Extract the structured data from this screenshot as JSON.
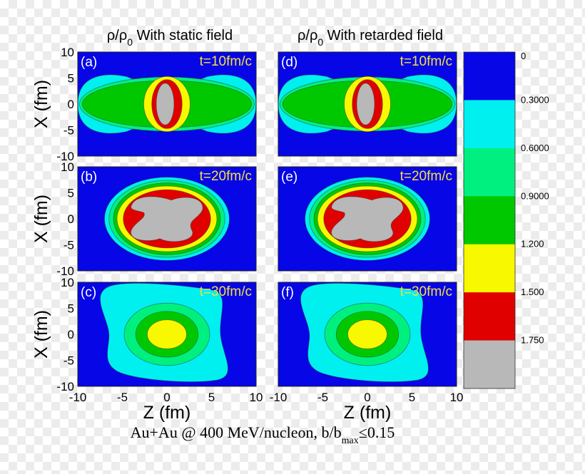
{
  "figure": {
    "caption_main": "Au+Au @ 400 MeV/nucleon, b/b",
    "caption_sub": "max",
    "caption_tail": "≤0.15"
  },
  "colors": {
    "background": "#0606e6",
    "levels": [
      "#0606e6",
      "#00f0f0",
      "#00f080",
      "#00c800",
      "#f8f800",
      "#e00000",
      "#b8b8b8"
    ],
    "label_text": "#ffffff",
    "time_text": "#f5e23a"
  },
  "chart_data": {
    "type": "heatmap",
    "description_fields_only": false,
    "columns": [
      {
        "title_rho": "ρ/ρ",
        "title_sub": "0",
        "title_text": " With static field"
      },
      {
        "title_rho": "ρ/ρ",
        "title_sub": "0",
        "title_text": " With retarded field"
      }
    ],
    "xlabel": "Z (fm)",
    "ylabel": "X (fm)",
    "xlim": [
      -10,
      10
    ],
    "ylim": [
      -10,
      10
    ],
    "x_ticks": [
      -10,
      -5,
      0,
      5,
      10
    ],
    "y_ticks": [
      10,
      5,
      0,
      -5,
      -10
    ],
    "colorbar": {
      "levels": [
        "0",
        "0.3000",
        "0.6000",
        "0.9000",
        "1.200",
        "1.500",
        "1.750"
      ]
    },
    "panels": [
      {
        "id": "a",
        "label": "(a)",
        "time": "t=10fm/c",
        "col": 0,
        "row": 0,
        "contours": [
          {
            "level": 1,
            "shape": "dumbbell",
            "half_width": 10,
            "end_half_height": 6.2,
            "waist_half_height": 3.6
          },
          {
            "level": 2,
            "shape": "ellipse",
            "cx": 0,
            "cy": 0,
            "rx": 9.8,
            "ry": 5.2
          },
          {
            "level": 3,
            "shape": "ellipse",
            "cx": 0,
            "cy": 0,
            "rx": 9.5,
            "ry": 4.5
          },
          {
            "level": 4,
            "shape": "ellipse",
            "cx": 0,
            "cy": 0,
            "rx": 2.6,
            "ry": 5.3
          },
          {
            "level": 5,
            "shape": "ellipse",
            "cx": 0,
            "cy": 0,
            "rx": 1.7,
            "ry": 4.7
          },
          {
            "level": 6,
            "shape": "ellipse",
            "cx": -0.2,
            "cy": 0,
            "rx": 1.0,
            "ry": 4.0
          }
        ]
      },
      {
        "id": "b",
        "label": "(b)",
        "time": "t=20fm/c",
        "col": 0,
        "row": 1,
        "contours": [
          {
            "level": 1,
            "shape": "ellipse",
            "cx": 0,
            "cy": 0,
            "rx": 7.0,
            "ry": 8.0
          },
          {
            "level": 2,
            "shape": "ellipse",
            "cx": 0,
            "cy": 0,
            "rx": 6.5,
            "ry": 7.4
          },
          {
            "level": 3,
            "shape": "ellipse",
            "cx": 0,
            "cy": 0,
            "rx": 6.0,
            "ry": 6.9
          },
          {
            "level": 4,
            "shape": "ellipse",
            "cx": 0,
            "cy": 0,
            "rx": 5.6,
            "ry": 6.3
          },
          {
            "level": 5,
            "shape": "ellipse",
            "cx": 0,
            "cy": 0,
            "rx": 4.9,
            "ry": 5.6
          },
          {
            "level": 6,
            "shape": "blob",
            "cx": 0,
            "cy": 0
          }
        ]
      },
      {
        "id": "c",
        "label": "(c)",
        "time": "t=30fm/c",
        "col": 0,
        "row": 2,
        "contours": [
          {
            "level": 1,
            "shape": "wave",
            "cx": 0,
            "cy": 0
          },
          {
            "level": 2,
            "shape": "ellipse",
            "cx": 0,
            "cy": 0,
            "rx": 4.8,
            "ry": 6.0
          },
          {
            "level": 3,
            "shape": "ellipse",
            "cx": 0,
            "cy": 0,
            "rx": 3.5,
            "ry": 4.4
          },
          {
            "level": 4,
            "shape": "ellipse",
            "cx": 0,
            "cy": 0,
            "rx": 2.2,
            "ry": 2.8
          }
        ]
      },
      {
        "id": "d",
        "label": "(d)",
        "time": "t=10fm/c",
        "col": 1,
        "row": 0,
        "contours": [
          {
            "level": 1,
            "shape": "dumbbell",
            "half_width": 10,
            "end_half_height": 6.2,
            "waist_half_height": 3.6
          },
          {
            "level": 2,
            "shape": "ellipse",
            "cx": 0,
            "cy": 0,
            "rx": 9.8,
            "ry": 5.2
          },
          {
            "level": 3,
            "shape": "ellipse",
            "cx": 0,
            "cy": 0,
            "rx": 9.5,
            "ry": 4.5
          },
          {
            "level": 4,
            "shape": "ellipse",
            "cx": 0,
            "cy": 0,
            "rx": 2.6,
            "ry": 5.3
          },
          {
            "level": 5,
            "shape": "ellipse",
            "cx": 0,
            "cy": 0,
            "rx": 1.7,
            "ry": 4.7
          },
          {
            "level": 6,
            "shape": "ellipse",
            "cx": -0.2,
            "cy": 0,
            "rx": 1.0,
            "ry": 4.0
          }
        ]
      },
      {
        "id": "e",
        "label": "(e)",
        "time": "t=20fm/c",
        "col": 1,
        "row": 1,
        "contours": [
          {
            "level": 1,
            "shape": "ellipse",
            "cx": 0,
            "cy": 0,
            "rx": 7.0,
            "ry": 8.0
          },
          {
            "level": 2,
            "shape": "ellipse",
            "cx": 0,
            "cy": 0,
            "rx": 6.5,
            "ry": 7.4
          },
          {
            "level": 3,
            "shape": "ellipse",
            "cx": 0,
            "cy": 0,
            "rx": 6.0,
            "ry": 6.9
          },
          {
            "level": 4,
            "shape": "ellipse",
            "cx": 0,
            "cy": 0,
            "rx": 5.6,
            "ry": 6.3
          },
          {
            "level": 5,
            "shape": "ellipse",
            "cx": 0,
            "cy": 0,
            "rx": 4.9,
            "ry": 5.6
          },
          {
            "level": 6,
            "shape": "blob",
            "cx": 0,
            "cy": 0
          }
        ]
      },
      {
        "id": "f",
        "label": "(f)",
        "time": "t=30fm/c",
        "col": 1,
        "row": 2,
        "contours": [
          {
            "level": 1,
            "shape": "wave",
            "cx": 0,
            "cy": 0
          },
          {
            "level": 2,
            "shape": "ellipse",
            "cx": 0,
            "cy": 0,
            "rx": 4.8,
            "ry": 6.0
          },
          {
            "level": 3,
            "shape": "ellipse",
            "cx": 0,
            "cy": 0,
            "rx": 3.5,
            "ry": 4.4
          },
          {
            "level": 4,
            "shape": "ellipse",
            "cx": 0,
            "cy": 0,
            "rx": 2.2,
            "ry": 2.8
          }
        ]
      }
    ]
  }
}
